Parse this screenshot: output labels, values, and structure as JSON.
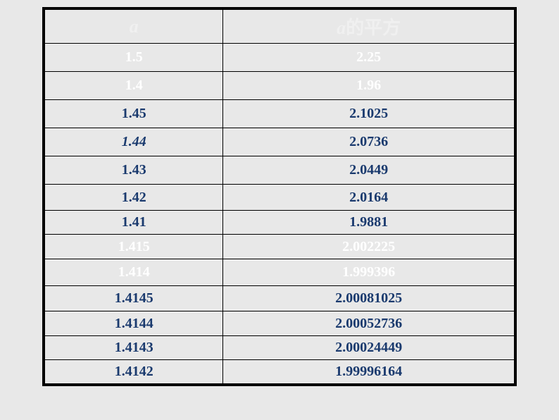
{
  "table": {
    "header": {
      "left_italic": "a",
      "right_italic": "a",
      "right_text": "的平方"
    },
    "rows": [
      {
        "a": "1.5",
        "sq": "2.25",
        "color": "white",
        "left_italic": false
      },
      {
        "a": "1.4",
        "sq": "1.96",
        "color": "white",
        "left_italic": false
      },
      {
        "a": "1.45",
        "sq": "2.1025",
        "color": "blue",
        "left_italic": false
      },
      {
        "a": "1.44",
        "sq": "2.0736",
        "color": "blue",
        "left_italic": true
      },
      {
        "a": "1.43",
        "sq": "2.0449",
        "color": "blue",
        "left_italic": false
      },
      {
        "a": "1.42",
        "sq": "2.0164",
        "color": "blue",
        "left_italic": false
      },
      {
        "a": "1.41",
        "sq": "1.9881",
        "color": "blue",
        "left_italic": false
      },
      {
        "a": "1.415",
        "sq": "2.002225",
        "color": "white",
        "left_italic": false
      },
      {
        "a": "1.414",
        "sq": "1.999396",
        "color": "white",
        "left_italic": false
      },
      {
        "a": "1.4145",
        "sq": "2.00081025",
        "color": "blue",
        "left_italic": false
      },
      {
        "a": "1.4144",
        "sq": "2.00052736",
        "color": "blue",
        "left_italic": false
      },
      {
        "a": "1.4143",
        "sq": "2.00024449",
        "color": "blue",
        "left_italic": false
      },
      {
        "a": "1.4142",
        "sq": "1.99996164",
        "color": "blue",
        "left_italic": false
      }
    ],
    "colors": {
      "background": "#e8e8e8",
      "border": "#000000",
      "text_blue": "#1a3a6e",
      "text_white": "#ffffff"
    },
    "font_sizes": {
      "header": 26,
      "body": 20
    }
  }
}
